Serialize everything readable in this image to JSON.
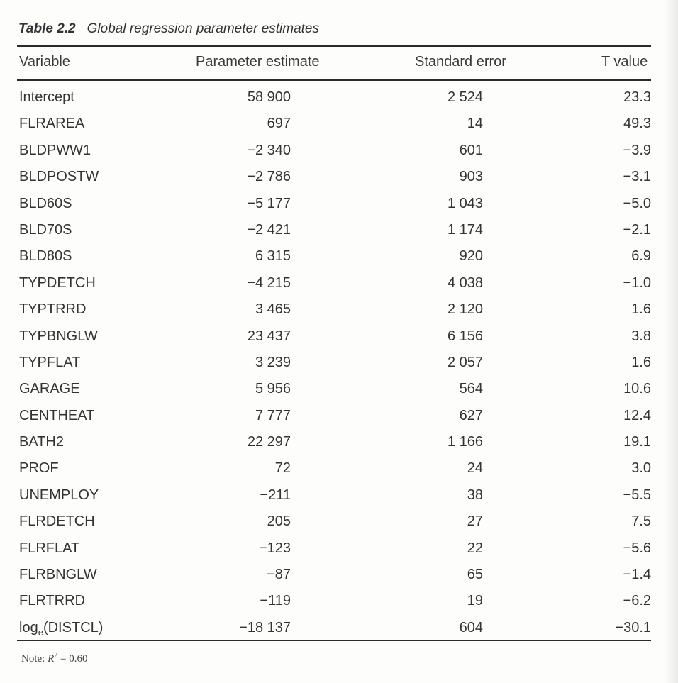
{
  "table": {
    "caption_label": "Table 2.2",
    "caption_title": "Global regression parameter estimates",
    "headers": {
      "variable": "Variable",
      "estimate": "Parameter estimate",
      "stderr": "Standard error",
      "tvalue": "T value"
    },
    "rows": [
      {
        "variable": "Intercept",
        "estimate": "58 900",
        "stderr": "2 524",
        "tvalue": "23.3"
      },
      {
        "variable": "FLRAREA",
        "estimate": "697",
        "stderr": "14",
        "tvalue": "49.3"
      },
      {
        "variable": "BLDPWW1",
        "estimate": "−2 340",
        "stderr": "601",
        "tvalue": "−3.9"
      },
      {
        "variable": "BLDPOSTW",
        "estimate": "−2 786",
        "stderr": "903",
        "tvalue": "−3.1"
      },
      {
        "variable": "BLD60S",
        "estimate": "−5 177",
        "stderr": "1 043",
        "tvalue": "−5.0"
      },
      {
        "variable": "BLD70S",
        "estimate": "−2 421",
        "stderr": "1 174",
        "tvalue": "−2.1"
      },
      {
        "variable": "BLD80S",
        "estimate": "6 315",
        "stderr": "920",
        "tvalue": "6.9"
      },
      {
        "variable": "TYPDETCH",
        "estimate": "−4 215",
        "stderr": "4 038",
        "tvalue": "−1.0"
      },
      {
        "variable": "TYPTRRD",
        "estimate": "3 465",
        "stderr": "2 120",
        "tvalue": "1.6"
      },
      {
        "variable": "TYPBNGLW",
        "estimate": "23 437",
        "stderr": "6 156",
        "tvalue": "3.8"
      },
      {
        "variable": "TYPFLAT",
        "estimate": "3 239",
        "stderr": "2 057",
        "tvalue": "1.6"
      },
      {
        "variable": "GARAGE",
        "estimate": "5 956",
        "stderr": "564",
        "tvalue": "10.6"
      },
      {
        "variable": "CENTHEAT",
        "estimate": "7 777",
        "stderr": "627",
        "tvalue": "12.4"
      },
      {
        "variable": "BATH2",
        "estimate": "22 297",
        "stderr": "1 166",
        "tvalue": "19.1"
      },
      {
        "variable": "PROF",
        "estimate": "72",
        "stderr": "24",
        "tvalue": "3.0"
      },
      {
        "variable": "UNEMPLOY",
        "estimate": "−211",
        "stderr": "38",
        "tvalue": "−5.5"
      },
      {
        "variable": "FLRDETCH",
        "estimate": "205",
        "stderr": "27",
        "tvalue": "7.5"
      },
      {
        "variable": "FLRFLAT",
        "estimate": "−123",
        "stderr": "22",
        "tvalue": "−5.6"
      },
      {
        "variable": "FLRBNGLW",
        "estimate": "−87",
        "stderr": "65",
        "tvalue": "−1.4"
      },
      {
        "variable": "FLRTRRD",
        "estimate": "−119",
        "stderr": "19",
        "tvalue": "−6.2"
      },
      {
        "variable_prefix": "log",
        "variable_sub": "e",
        "variable_suffix": "(DISTCL)",
        "estimate": "−18 137",
        "stderr": "604",
        "tvalue": "−30.1"
      }
    ],
    "note_label": "Note:",
    "note_r": "R",
    "note_sup": "2",
    "note_value": "= 0.60"
  }
}
